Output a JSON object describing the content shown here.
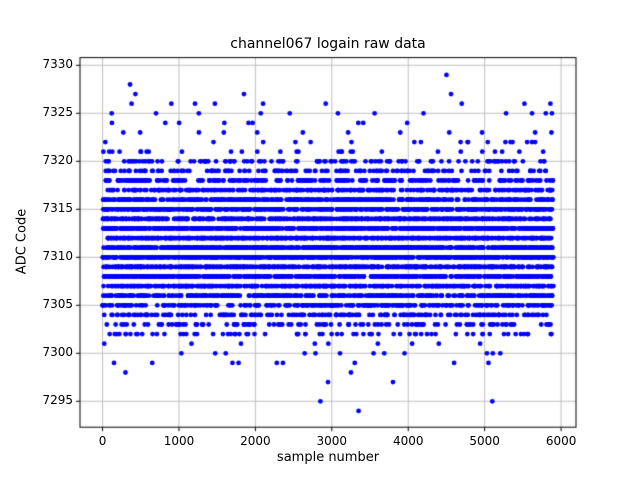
{
  "chart_data": {
    "type": "scatter",
    "title": "channel067 logain raw data",
    "xlabel": "sample number",
    "ylabel": "ADC Code",
    "xlim": [
      -295,
      6195
    ],
    "ylim": [
      7292.3,
      7330.8
    ],
    "xticks": [
      0,
      1000,
      2000,
      3000,
      4000,
      5000,
      6000
    ],
    "yticks": [
      7295,
      7300,
      7305,
      7310,
      7315,
      7320,
      7325,
      7330
    ],
    "grid": true,
    "legend": "none",
    "marker_color": "#0000ff",
    "marker_radius": 2.4,
    "grid_color": "#b0b0b0",
    "frame_color": "#000000",
    "x_data_range": [
      0,
      5900
    ],
    "band_counts": {
      "7300": 12,
      "7301": 9,
      "7302": 70,
      "7303": 110,
      "7304": 180,
      "7305": 280,
      "7306": 340,
      "7307": 420,
      "7308": 500,
      "7309": 560,
      "7310": 600,
      "7311": 610,
      "7312": 600,
      "7313": 560,
      "7314": 510,
      "7315": 460,
      "7316": 380,
      "7317": 310,
      "7318": 220,
      "7319": 140,
      "7320": 110,
      "7321": 28,
      "7322": 18,
      "7323": 12,
      "7324": 9
    },
    "outlier_points": [
      [
        3350,
        7294
      ],
      [
        2850,
        7295
      ],
      [
        5100,
        7295
      ],
      [
        2950,
        7297
      ],
      [
        3800,
        7297
      ],
      [
        300,
        7298
      ],
      [
        3250,
        7298
      ],
      [
        150,
        7299
      ],
      [
        650,
        7299
      ],
      [
        1700,
        7299
      ],
      [
        1780,
        7299
      ],
      [
        2280,
        7299
      ],
      [
        2360,
        7299
      ],
      [
        3300,
        7299
      ],
      [
        4600,
        7299
      ],
      [
        5050,
        7299
      ],
      [
        120,
        7325
      ],
      [
        700,
        7325
      ],
      [
        1260,
        7325
      ],
      [
        2070,
        7325
      ],
      [
        2450,
        7325
      ],
      [
        3080,
        7325
      ],
      [
        3560,
        7325
      ],
      [
        4200,
        7325
      ],
      [
        5280,
        7325
      ],
      [
        5620,
        7325
      ],
      [
        5800,
        7325
      ],
      [
        5880,
        7325
      ],
      [
        380,
        7326
      ],
      [
        900,
        7326
      ],
      [
        1210,
        7326
      ],
      [
        1470,
        7326
      ],
      [
        2100,
        7326
      ],
      [
        2920,
        7326
      ],
      [
        4700,
        7326
      ],
      [
        5520,
        7326
      ],
      [
        5860,
        7326
      ],
      [
        430,
        7327
      ],
      [
        1850,
        7327
      ],
      [
        4560,
        7327
      ],
      [
        360,
        7328
      ],
      [
        4500,
        7329
      ]
    ]
  }
}
